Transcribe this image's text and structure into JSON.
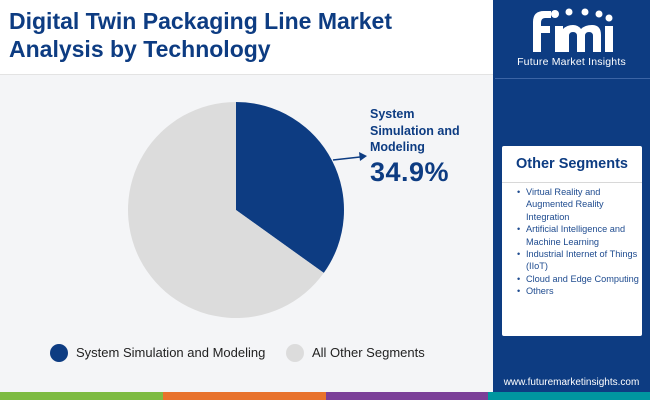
{
  "header": {
    "title": "Digital Twin Packaging Line Market Analysis by Technology"
  },
  "brand": {
    "name": "Future Market Insights",
    "logo_letters": "fmi",
    "website": "www.futuremarketinsights.com"
  },
  "colors": {
    "brand_blue": "#0d3c82",
    "slice_other": "#dcdcdc",
    "footer_green": "#7dbb42",
    "footer_orange": "#e8722c",
    "footer_purple": "#7b3f98",
    "footer_teal": "#0096a0"
  },
  "chart_data": {
    "type": "pie",
    "title": "Digital Twin Packaging Line Market Analysis by Technology",
    "categories": [
      "System Simulation and Modeling",
      "All Other Segments"
    ],
    "values": [
      34.9,
      65.1
    ],
    "colors": [
      "#0d3c82",
      "#dcdcdc"
    ],
    "unit": "%",
    "highlight": {
      "label": "System Simulation and Modeling",
      "value_text": "34.9%"
    },
    "legend": [
      {
        "label": "System Simulation and Modeling",
        "color": "#0d3c82"
      },
      {
        "label": "All Other Segments",
        "color": "#dcdcdc"
      }
    ]
  },
  "other_segments": {
    "title": "Other Segments",
    "items": [
      "Virtual Reality and Augmented Reality Integration",
      "Artificial Intelligence and Machine Learning",
      "Industrial Internet of Things (IIoT)",
      "Cloud and Edge Computing",
      "Others"
    ]
  }
}
